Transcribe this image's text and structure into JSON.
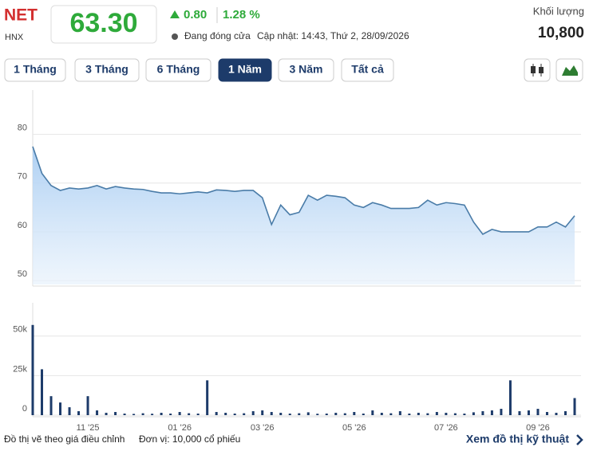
{
  "header": {
    "ticker": "NET",
    "exchange": "HNX",
    "price": "63.30",
    "change": "0.80",
    "change_pct": "1.28 %",
    "status": "Đang đóng cửa",
    "updated": "Cập nhật: 14:43, Thứ 2, 28/09/2026",
    "volume_label": "Khối lượng",
    "volume": "10,800"
  },
  "tabs": [
    "1 Tháng",
    "3 Tháng",
    "6 Tháng",
    "1 Năm",
    "3 Năm",
    "Tất cả"
  ],
  "active_tab": 3,
  "footer": {
    "note": "Đồ thị vẽ theo giá điều chỉnh",
    "unit": "Đơn vị: 10,000 cổ phiếu",
    "link": "Xem đồ thị kỹ thuật"
  },
  "chart_data": [
    {
      "type": "area",
      "color": "#4a7ca8",
      "grid": true,
      "categories": [
        null,
        null,
        null,
        null,
        null,
        null,
        "11 '25",
        null,
        null,
        null,
        null,
        null,
        null,
        null,
        null,
        null,
        "01 '26",
        null,
        null,
        null,
        null,
        null,
        null,
        null,
        null,
        "03 '26",
        null,
        null,
        null,
        null,
        null,
        null,
        null,
        null,
        null,
        "05 '26",
        null,
        null,
        null,
        null,
        null,
        null,
        null,
        null,
        null,
        "07 '26",
        null,
        null,
        null,
        null,
        null,
        null,
        null,
        null,
        null,
        "09 '26",
        null,
        null,
        null,
        null
      ],
      "values": [
        77.5,
        72,
        69.5,
        68.5,
        69,
        68.8,
        69,
        69.5,
        68.8,
        69.3,
        69,
        68.8,
        68.7,
        68.3,
        68,
        68,
        67.8,
        68,
        68.2,
        68,
        68.6,
        68.5,
        68.3,
        68.5,
        68.5,
        67,
        61.5,
        65.5,
        63.5,
        64,
        67.5,
        66.5,
        67.5,
        67.3,
        67,
        65.5,
        65,
        66,
        65.5,
        64.8,
        64.8,
        64.8,
        65,
        66.5,
        65.5,
        66,
        65.8,
        65.5,
        62,
        59.5,
        60.5,
        60,
        60,
        60,
        60,
        61,
        61,
        62,
        61,
        63.3
      ],
      "ylim": [
        49.2,
        89.1
      ],
      "yticks": [
        50,
        60,
        70,
        80
      ]
    },
    {
      "type": "bar",
      "color": "#1d3b6a",
      "grid": true,
      "values": [
        57000,
        29000,
        12000,
        8000,
        5000,
        2500,
        12000,
        3000,
        1500,
        2000,
        1000,
        800,
        1200,
        900,
        1500,
        1000,
        2000,
        1200,
        1000,
        22000,
        2000,
        1500,
        1000,
        1200,
        2500,
        3000,
        2000,
        1500,
        1000,
        1200,
        1800,
        900,
        1000,
        1500,
        1200,
        2000,
        1000,
        3000,
        1500,
        1200,
        2500,
        1000,
        1500,
        1200,
        2000,
        1500,
        1200,
        1000,
        1800,
        2500,
        3000,
        4000,
        22000,
        2500,
        3000,
        4000,
        2000,
        1500,
        2500,
        10800
      ],
      "ylim": [
        0,
        71000
      ],
      "yticks": [
        {
          "value": 0,
          "label": "0"
        },
        {
          "value": 25000,
          "label": "25k"
        },
        {
          "value": 50000,
          "label": "50k"
        }
      ]
    }
  ]
}
